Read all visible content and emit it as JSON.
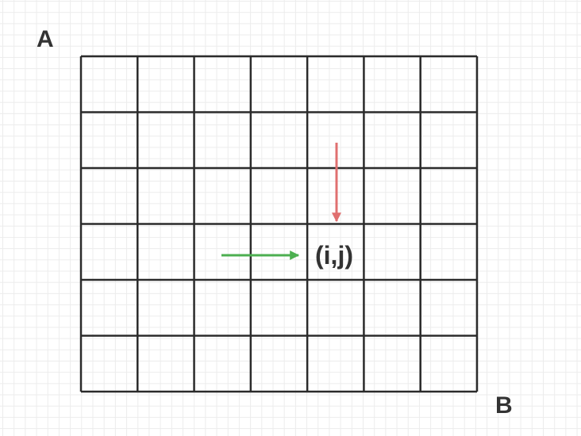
{
  "diagram": {
    "corner_top_left": "A",
    "corner_bottom_right": "B",
    "cell_label": "(i,j)",
    "grid": {
      "columns": 7,
      "rows": 6
    },
    "colors": {
      "grid_line": "#2b2b2b",
      "down_arrow": "#e07070",
      "right_arrow": "#4caf50",
      "text": "#333333"
    },
    "arrows": [
      {
        "name": "down-arrow",
        "direction": "down",
        "color": "#e07070"
      },
      {
        "name": "right-arrow",
        "direction": "right",
        "color": "#4caf50"
      }
    ]
  }
}
